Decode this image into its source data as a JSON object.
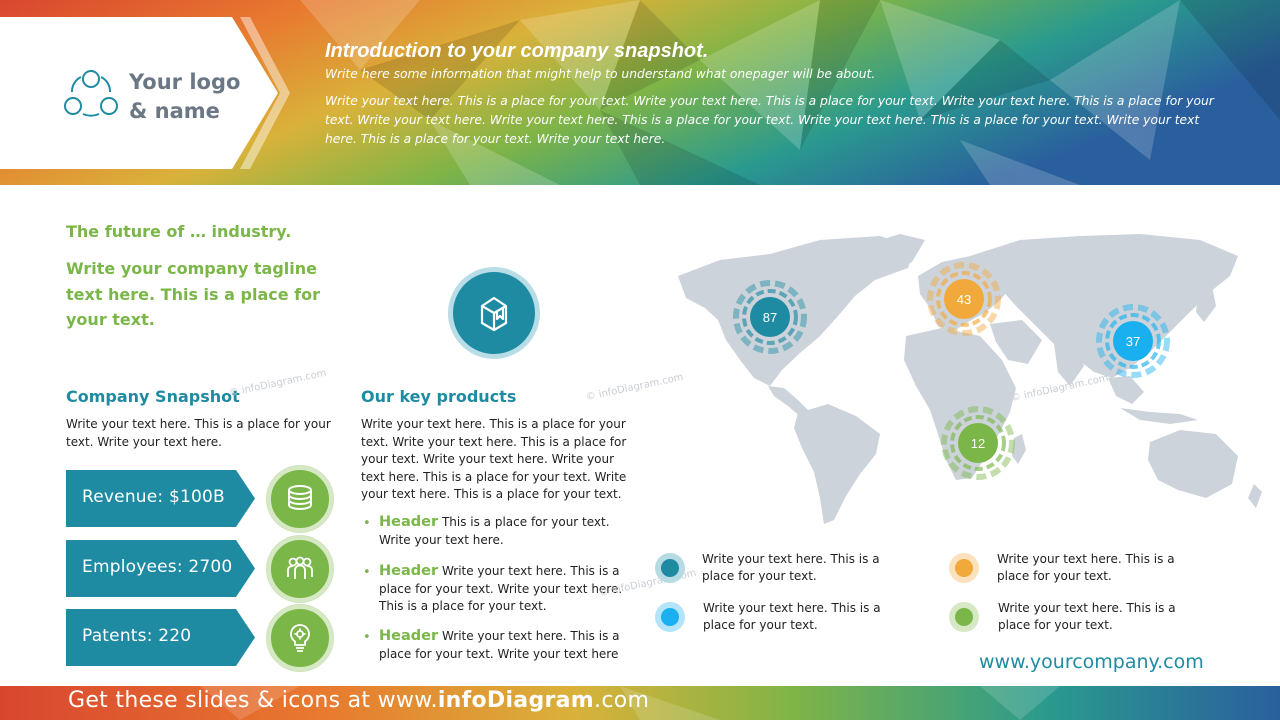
{
  "header": {
    "logo_line1": "Your logo",
    "logo_line2": "& name",
    "title": "Introduction to your company snapshot.",
    "subtitle": "Write here some information that might help to understand what onepager will be about.",
    "body": "Write your text here. This is a place for your text. Write your text here. This is a place for your text. Write your text here. This is a place for your text. Write your text here. Write your text here. This is a place for your text. Write your text here. This is a place for your text. Write your text here. This is a place for your text. Write your text here."
  },
  "left": {
    "future": "The future of … industry.",
    "tagline": "Write your company tagline text here. This is a place for your text.",
    "snapshot_title": "Company Snapshot",
    "snapshot_text": "Write your text here. This is a place for your text. Write your text here.",
    "kpis": [
      {
        "label": "Revenue:  $100B",
        "icon": "coins-icon"
      },
      {
        "label": "Employees:  2700",
        "icon": "people-icon"
      },
      {
        "label": "Patents:  220",
        "icon": "lightbulb-gear-icon"
      }
    ]
  },
  "products": {
    "icon": "box-icon",
    "title": "Our key products",
    "text": "Write your text here. This is a place for your text. Write your text here. This is a place for your text. Write your text here. Write your text here. This is a place for your text. Write your text here. This is a place for your text.",
    "bullets": [
      {
        "head": "Header",
        "text": " This is a place for your text. Write your text here."
      },
      {
        "head": "Header",
        "text": " Write your text here. This is a place for your text. Write your text here. This is a  place for your text."
      },
      {
        "head": "Header",
        "text": " Write your text here. This is a place for your text. Write your text here"
      }
    ]
  },
  "map": {
    "markers": [
      {
        "value": "87",
        "color": "#1e8ba3"
      },
      {
        "value": "43",
        "color": "#f2a93b"
      },
      {
        "value": "37",
        "color": "#1ab0ef"
      },
      {
        "value": "12",
        "color": "#7ab648"
      }
    ],
    "legend": [
      {
        "text": "Write your text here. This is a place for your text.",
        "color": "#1e8ba3"
      },
      {
        "text": "Write your text here. This is a place for your text.",
        "color": "#f2a93b"
      },
      {
        "text": "Write your text here. This is a place for your text.",
        "color": "#1ab0ef"
      },
      {
        "text": "Write your text here. This is a place for your text.",
        "color": "#7ab648"
      }
    ],
    "land_color": "#cdd3da"
  },
  "website": "www.yourcompany.com",
  "watermark": "© infoDiagram.com",
  "footer": {
    "prefix": "Get these slides & icons at www.",
    "brand": "infoDiagram",
    "suffix": ".com"
  }
}
